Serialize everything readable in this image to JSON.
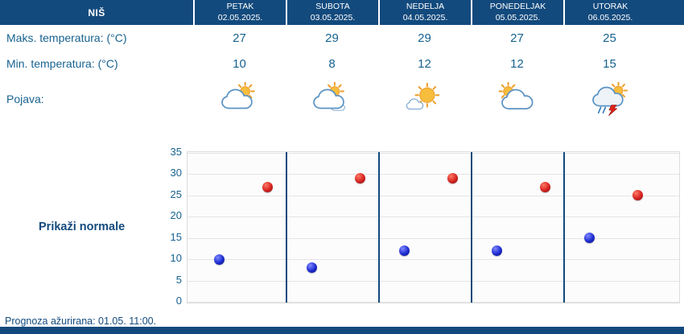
{
  "header": {
    "location": "NIŠ",
    "days": [
      {
        "name": "PETAK",
        "date": "02.05.2025."
      },
      {
        "name": "SUBOTA",
        "date": "03.05.2025."
      },
      {
        "name": "NEDELJA",
        "date": "04.05.2025."
      },
      {
        "name": "PONEDELJAK",
        "date": "05.05.2025."
      },
      {
        "name": "UTORAK",
        "date": "06.05.2025."
      }
    ]
  },
  "table": {
    "max_label": "Maks. temperatura: (°C)",
    "min_label": "Min. temperatura: (°C)",
    "pojava_label": "Pojava:",
    "max_values": [
      27,
      29,
      29,
      27,
      25
    ],
    "min_values": [
      10,
      8,
      12,
      12,
      15
    ],
    "icons": [
      "sun-behind-cloud-icon",
      "sun-behind-clouds-icon",
      "mostly-sunny-icon",
      "sun-behind-big-cloud-icon",
      "thunderstorm-rain-icon"
    ]
  },
  "normals_label": "Prikaži normale",
  "footer": {
    "updated": "Prognoza ažurirana:  01.05. 11:00."
  },
  "colors": {
    "navy": "#134a7d",
    "text_blue": "#17628f",
    "max_dot": "#d6231f",
    "min_dot": "#1c2bd0"
  },
  "chart_data": {
    "type": "scatter",
    "title": "",
    "categories": [
      "PETAK 02.05.2025.",
      "SUBOTA 03.05.2025.",
      "NEDELJA 04.05.2025.",
      "PONEDELJAK 05.05.2025.",
      "UTORAK 06.05.2025."
    ],
    "series": [
      {
        "name": "Maks. temperatura (°C)",
        "color": "#d6231f",
        "values": [
          27,
          29,
          29,
          27,
          25
        ]
      },
      {
        "name": "Min. temperatura (°C)",
        "color": "#1c2bd0",
        "values": [
          10,
          8,
          12,
          12,
          15
        ]
      }
    ],
    "ylim": [
      0,
      35
    ],
    "ytick_step": 5,
    "grid": true,
    "legend": "none"
  }
}
